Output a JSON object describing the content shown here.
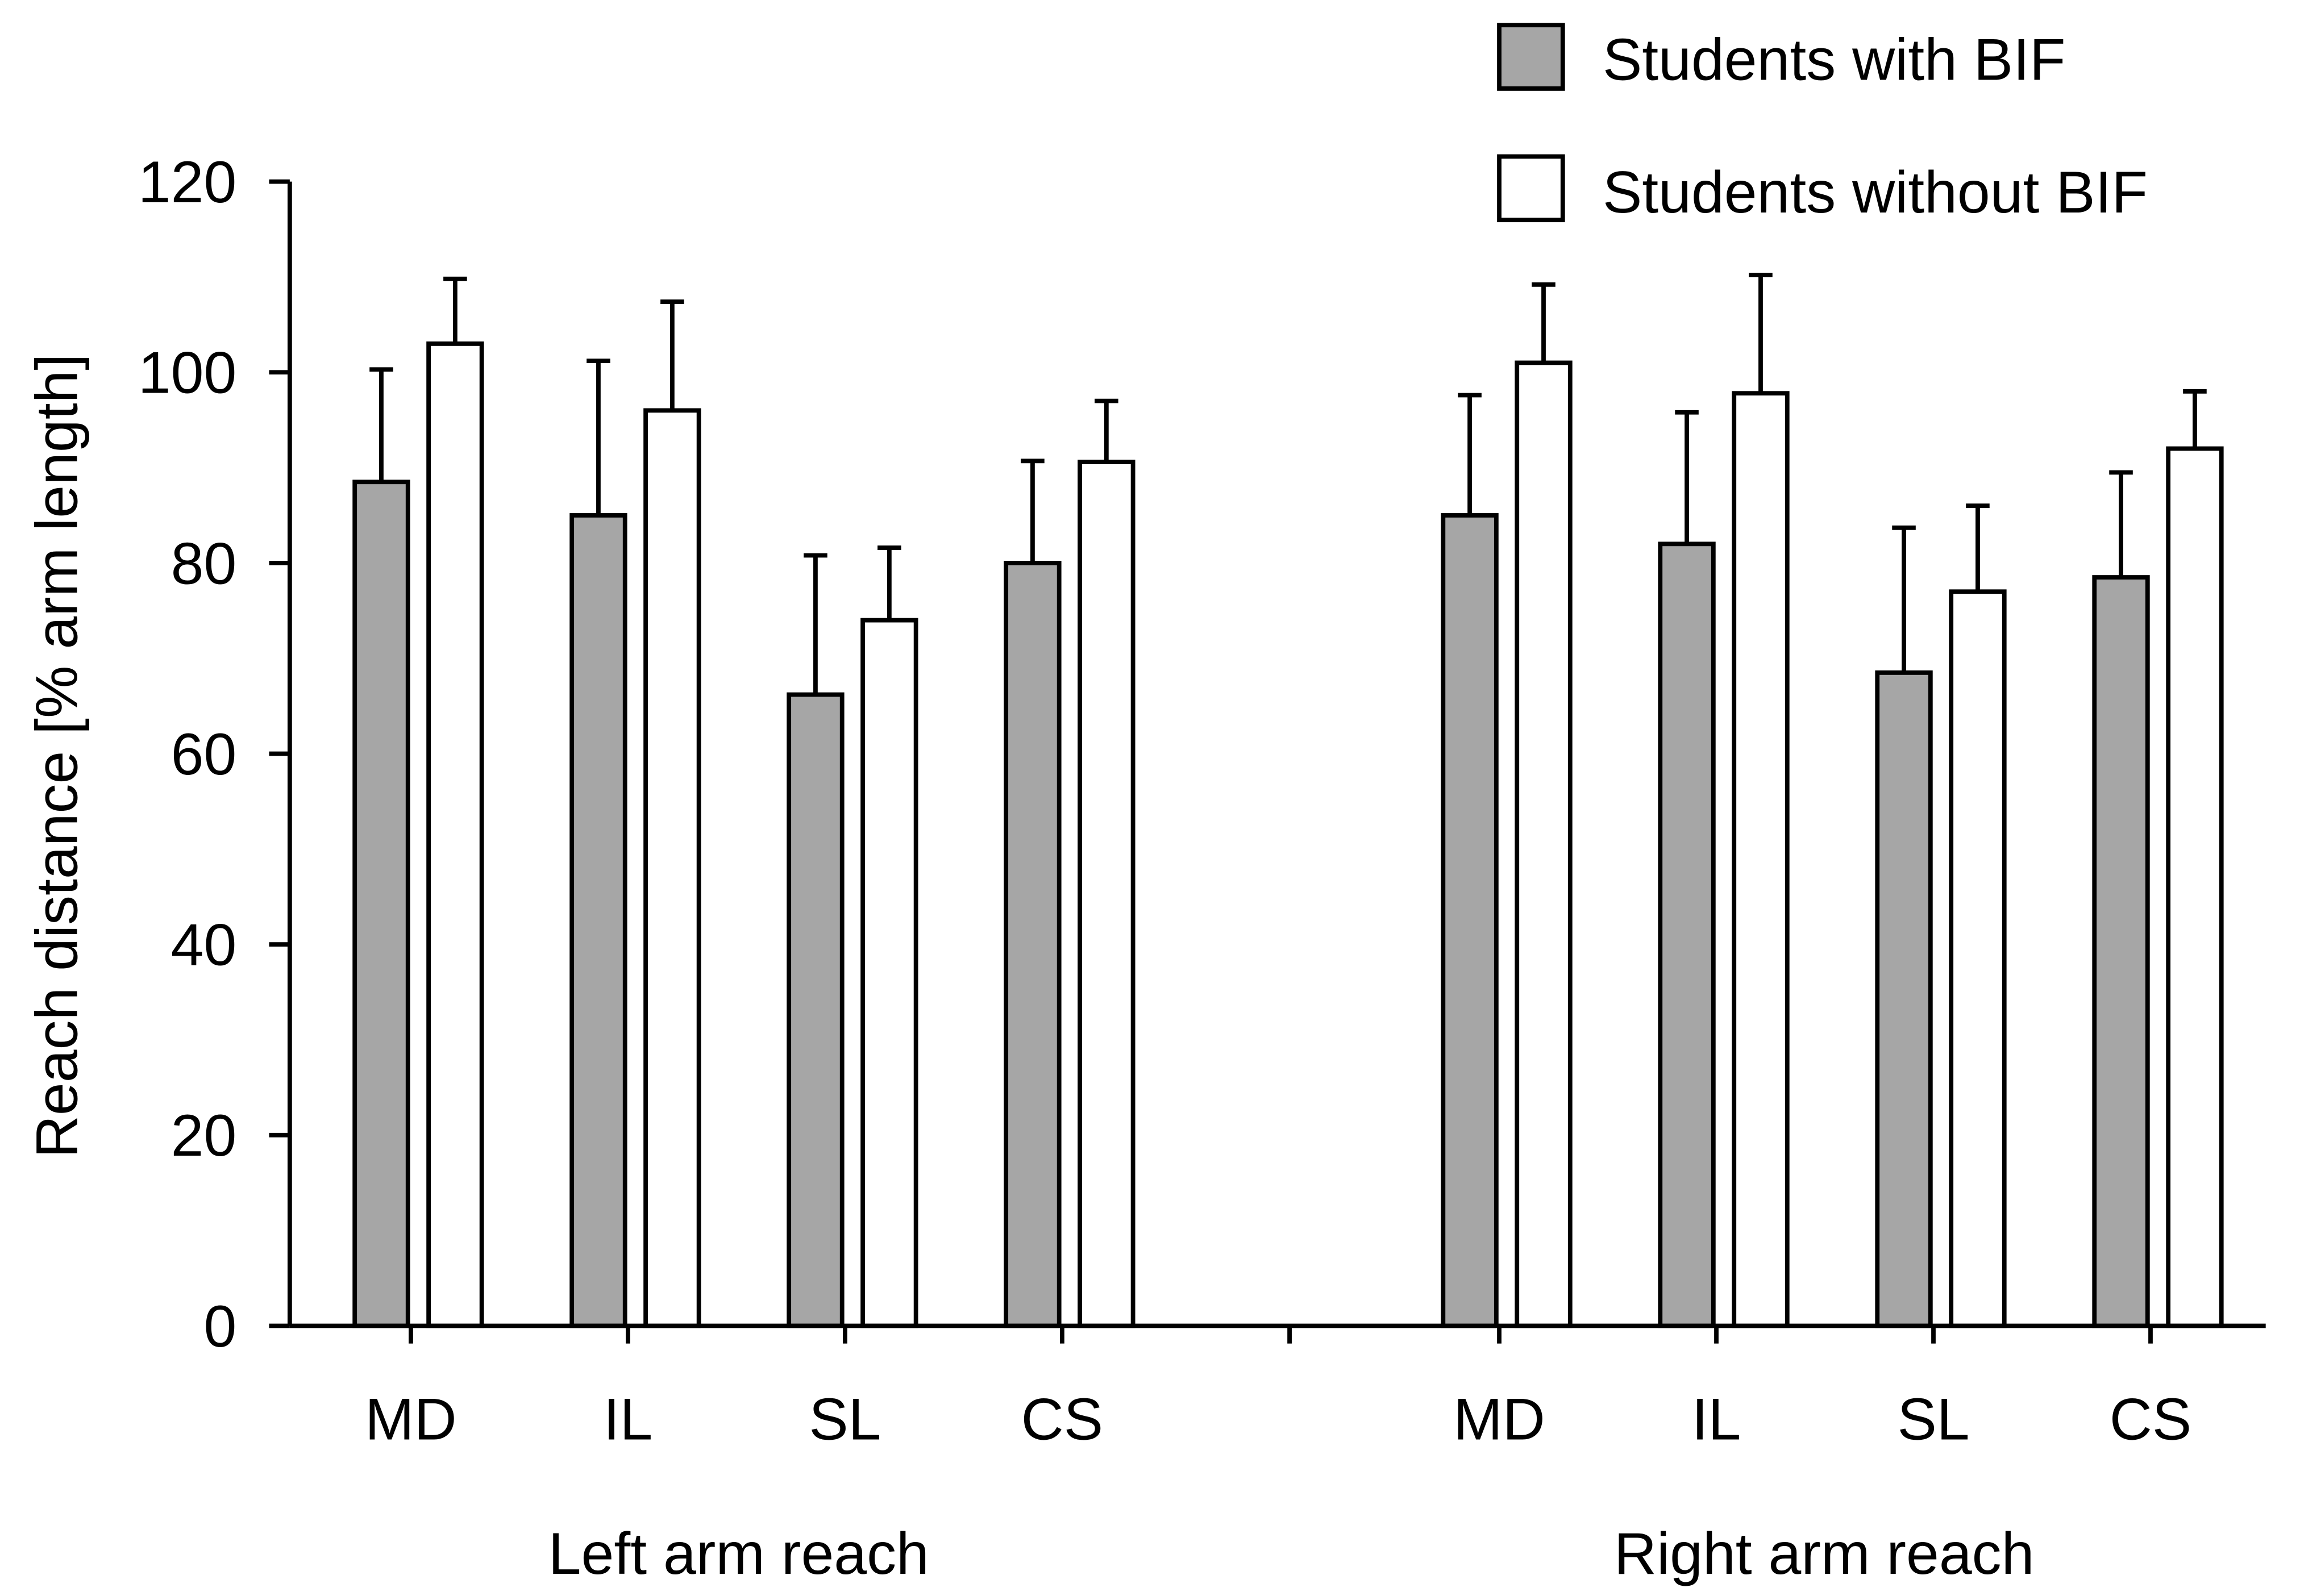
{
  "chart_data": {
    "type": "bar",
    "title": "",
    "xlabel": "",
    "ylabel": "Reach distance [% arm length]",
    "ylim": [
      0,
      120
    ],
    "yticks": [
      0,
      20,
      40,
      60,
      80,
      100,
      120
    ],
    "groups": [
      {
        "name": "Left arm reach",
        "categories": [
          "MD",
          "IL",
          "SL",
          "CS"
        ],
        "series": [
          {
            "name": "Students with BIF",
            "values": [
              88.5,
              85,
              66.2,
              80
            ],
            "errors": [
              11.8,
              16.2,
              14.6,
              10.7
            ]
          },
          {
            "name": "Students without BIF",
            "values": [
              103,
              96,
              74,
              90.6
            ],
            "errors": [
              6.8,
              11.4,
              7.6,
              6.4
            ]
          }
        ]
      },
      {
        "name": "Right arm reach",
        "categories": [
          "MD",
          "IL",
          "SL",
          "CS"
        ],
        "series": [
          {
            "name": "Students with BIF",
            "values": [
              85,
              82,
              68.5,
              78.5
            ],
            "errors": [
              12.6,
              13.8,
              15.2,
              11
            ]
          },
          {
            "name": "Students without BIF",
            "values": [
              101,
              97.8,
              77,
              92
            ],
            "errors": [
              8.2,
              12.4,
              9,
              6
            ]
          }
        ]
      }
    ],
    "legend": {
      "position": "top-right",
      "entries": [
        {
          "label": "Students with BIF",
          "color": "#a6a6a6"
        },
        {
          "label": "Students without BIF",
          "color": "#ffffff"
        }
      ]
    },
    "grid": false
  }
}
